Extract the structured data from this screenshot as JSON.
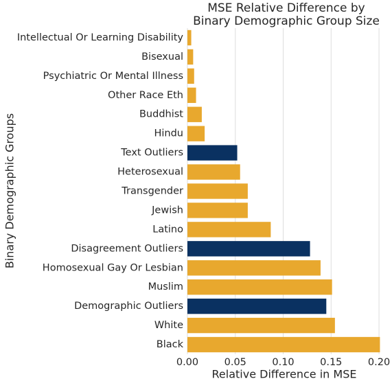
{
  "chart_data": {
    "type": "barh",
    "title": [
      "MSE Relative Difference by",
      "Binary Demographic Group Size"
    ],
    "xlabel": "Relative Difference in MSE",
    "ylabel": "Binary Demographic Groups",
    "categories": [
      "Intellectual Or Learning Disability",
      "Bisexual",
      "Psychiatric Or Mental Illness",
      "Other Race Eth",
      "Buddhist",
      "Hindu",
      "Text Outliers",
      "Heterosexual",
      "Transgender",
      "Jewish",
      "Latino",
      "Disagreement Outliers",
      "Homosexual Gay Or Lesbian",
      "Muslim",
      "Demographic Outliers",
      "White",
      "Black"
    ],
    "values": [
      0.004,
      0.006,
      0.007,
      0.009,
      0.015,
      0.018,
      0.052,
      0.055,
      0.063,
      0.063,
      0.087,
      0.128,
      0.139,
      0.151,
      0.145,
      0.154,
      0.201
    ],
    "colors": [
      "#e8a82e",
      "#e8a82e",
      "#e8a82e",
      "#e8a82e",
      "#e8a82e",
      "#e8a82e",
      "#0a3161",
      "#e8a82e",
      "#e8a82e",
      "#e8a82e",
      "#e8a82e",
      "#0a3161",
      "#e8a82e",
      "#e8a82e",
      "#0a3161",
      "#e8a82e",
      "#e8a82e"
    ],
    "xlim": [
      0,
      0.21
    ],
    "xticks": [
      {
        "value": 0,
        "label": "0.00"
      },
      {
        "value": 0.05,
        "label": "0.05"
      },
      {
        "value": 0.1,
        "label": "0.10"
      },
      {
        "value": 0.15,
        "label": "0.15"
      },
      {
        "value": 0.2,
        "label": "0.20"
      }
    ],
    "grid": true
  }
}
